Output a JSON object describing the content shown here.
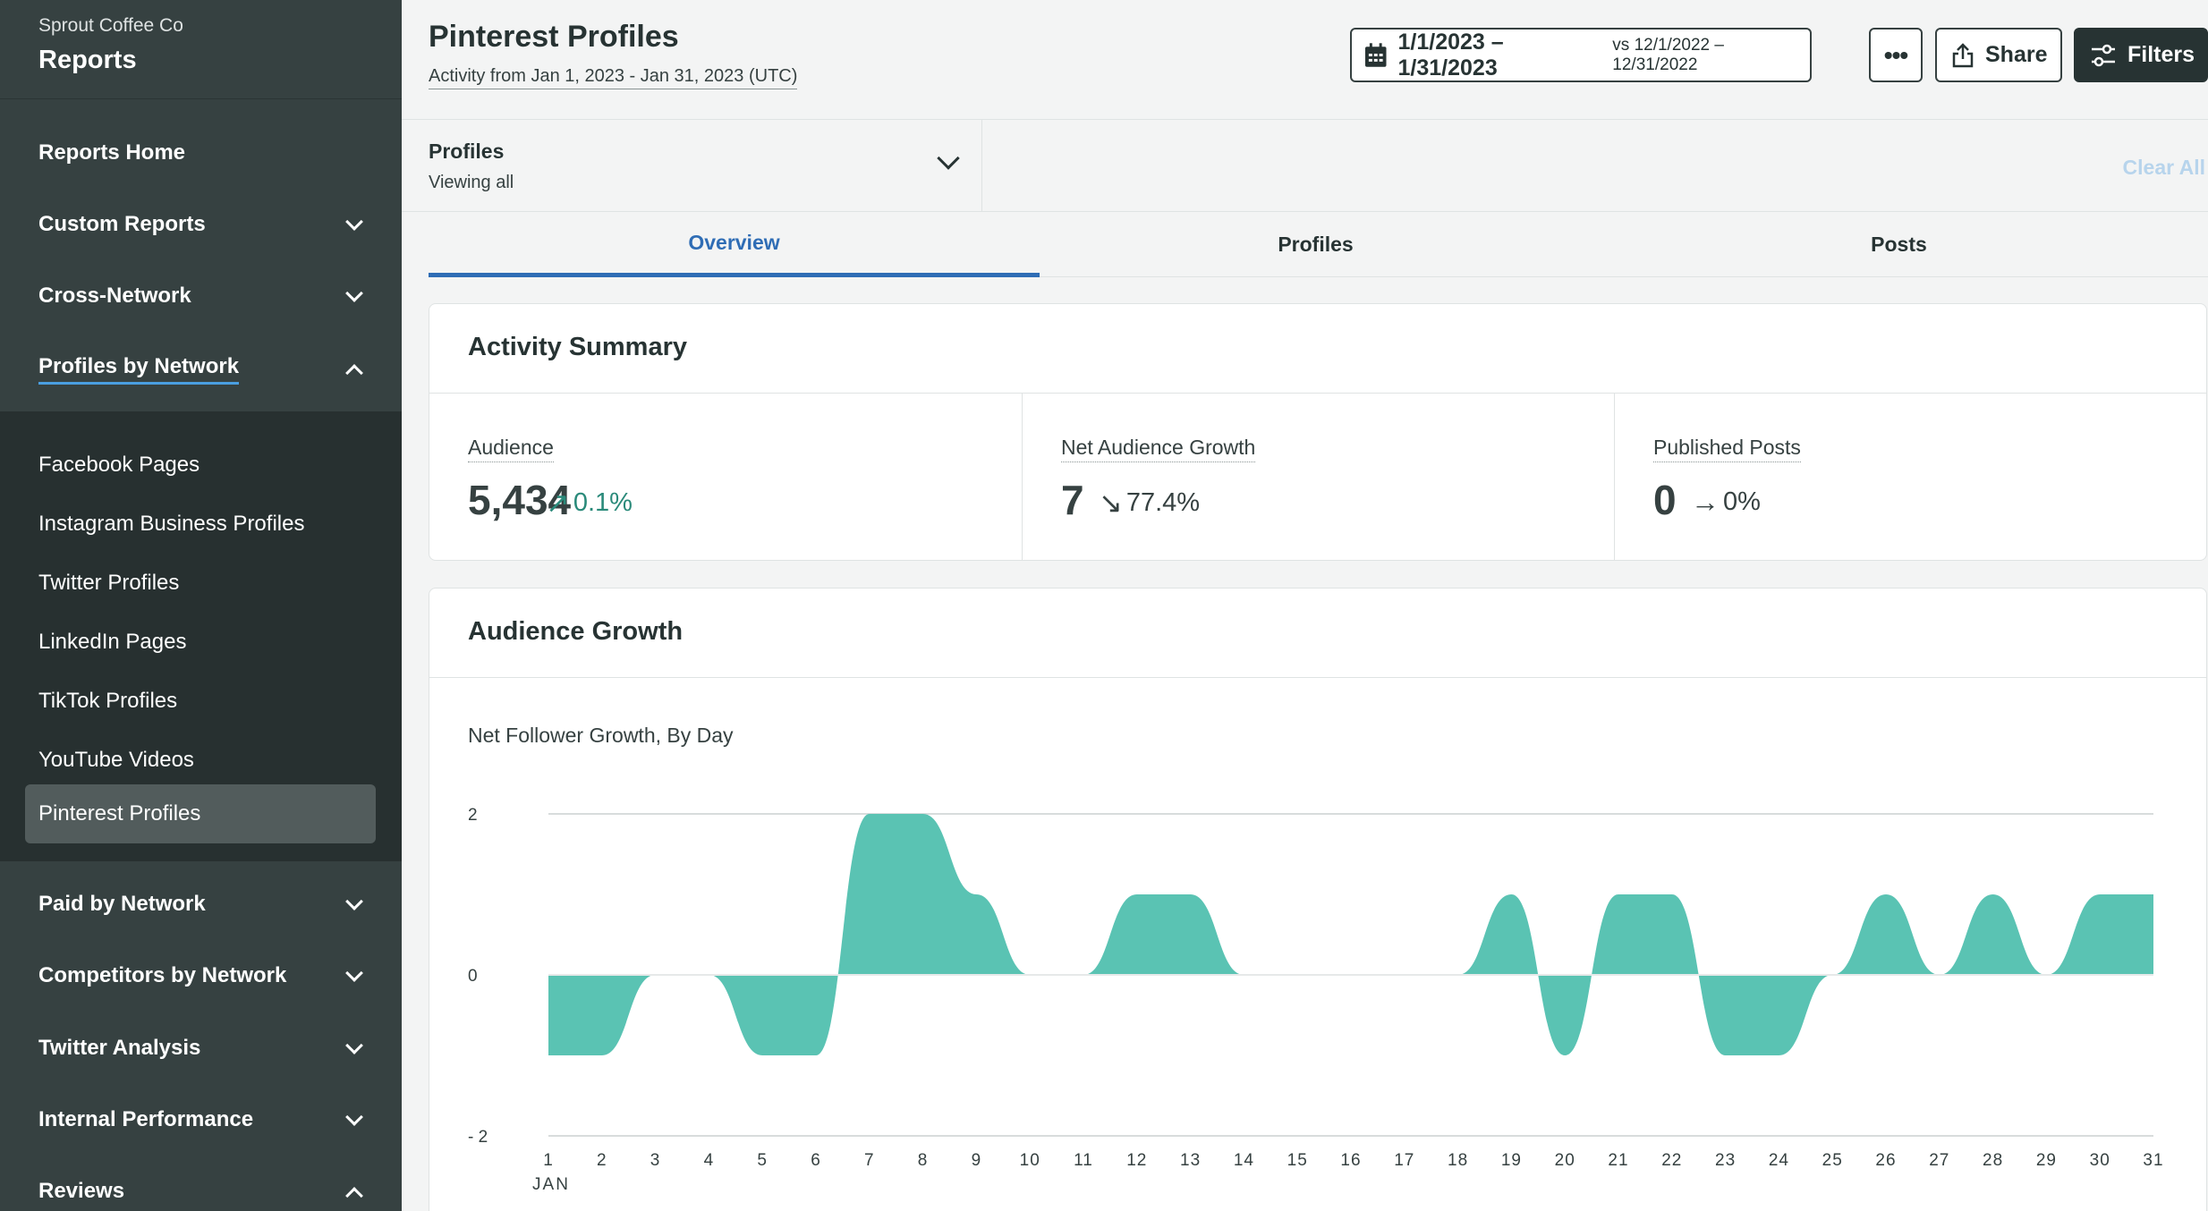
{
  "sidebar": {
    "org": "Sprout Coffee Co",
    "title": "Reports",
    "items": [
      {
        "label": "Reports Home"
      },
      {
        "label": "Custom Reports"
      },
      {
        "label": "Cross-Network"
      },
      {
        "label": "Profiles by Network"
      },
      {
        "label": "Paid by Network"
      },
      {
        "label": "Competitors by Network"
      },
      {
        "label": "Twitter Analysis"
      },
      {
        "label": "Internal Performance"
      },
      {
        "label": "Reviews"
      }
    ],
    "sub_items": [
      {
        "label": "Facebook Pages"
      },
      {
        "label": "Instagram Business Profiles"
      },
      {
        "label": "Twitter Profiles"
      },
      {
        "label": "LinkedIn Pages"
      },
      {
        "label": "TikTok Profiles"
      },
      {
        "label": "YouTube Videos"
      },
      {
        "label": "Pinterest Profiles"
      }
    ]
  },
  "header": {
    "title": "Pinterest Profiles",
    "subtitle": "Activity from Jan 1, 2023 - Jan 31, 2023 (UTC)",
    "date_range": "1/1/2023 – 1/31/2023",
    "compare_range": "vs 12/1/2022 – 12/31/2022",
    "more_label": "•••",
    "share_label": "Share",
    "filters_label": "Filters"
  },
  "filter_bar": {
    "profiles_label": "Profiles",
    "profiles_value": "Viewing all",
    "clear_all": "Clear All"
  },
  "tabs": [
    {
      "label": "Overview"
    },
    {
      "label": "Profiles"
    },
    {
      "label": "Posts"
    }
  ],
  "activity_summary": {
    "title": "Activity Summary",
    "stats": [
      {
        "label": "Audience",
        "value": "5,434",
        "arrow": "↗",
        "change": "0.1%",
        "color": "#2a8a7a"
      },
      {
        "label": "Net Audience Growth",
        "value": "7",
        "arrow": "↘",
        "change": "77.4%",
        "color": "#364141"
      },
      {
        "label": "Published Posts",
        "value": "0",
        "arrow": "→",
        "change": "0%",
        "color": "#364141"
      }
    ]
  },
  "audience_growth": {
    "title": "Audience Growth",
    "subtitle": "Net Follower Growth, By Day"
  },
  "chart_data": {
    "type": "area",
    "x": [
      1,
      2,
      3,
      4,
      5,
      6,
      7,
      8,
      9,
      10,
      11,
      12,
      13,
      14,
      15,
      16,
      17,
      18,
      19,
      20,
      21,
      22,
      23,
      24,
      25,
      26,
      27,
      28,
      29,
      30,
      31
    ],
    "x_tick_labels": [
      "1",
      "2",
      "3",
      "4",
      "5",
      "6",
      "7",
      "8",
      "9",
      "10",
      "11",
      "12",
      "13",
      "14",
      "15",
      "16",
      "17",
      "18",
      "19",
      "20",
      "21",
      "22",
      "23",
      "24",
      "25",
      "26",
      "27",
      "28",
      "29",
      "30",
      "31"
    ],
    "x_axis_month": "JAN",
    "series": [
      {
        "values": [
          -1,
          -1,
          0,
          0,
          -1,
          -1,
          2,
          2,
          1,
          0,
          0,
          1,
          1,
          0,
          0,
          0,
          0,
          0,
          1,
          -1,
          1,
          1,
          -1,
          -1,
          0,
          1,
          0,
          1,
          0,
          1,
          1
        ]
      }
    ],
    "ylim": [
      -2,
      2
    ],
    "y_ticks": [
      2,
      0,
      -2
    ],
    "y_tick_labels": [
      "2",
      "0",
      "- 2"
    ],
    "grid": true,
    "color": "#5ac3b3"
  }
}
